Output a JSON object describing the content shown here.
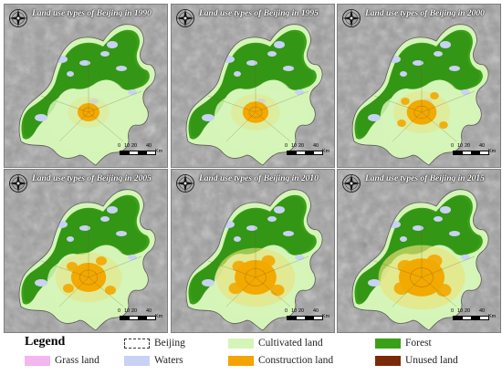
{
  "panels": [
    {
      "title": "Land use types of Beijing in 1990",
      "construction_growth": 0.0
    },
    {
      "title": "Land use types of Beijing in 1995",
      "construction_growth": 0.15
    },
    {
      "title": "Land use types of Beijing in 2000",
      "construction_growth": 0.3
    },
    {
      "title": "Land use types of Beijing in 2005",
      "construction_growth": 0.5
    },
    {
      "title": "Land use types of Beijing in 2010",
      "construction_growth": 0.75
    },
    {
      "title": "Land use types of Beijing in 2015",
      "construction_growth": 0.9
    }
  ],
  "scale": {
    "ticks": [
      "0",
      "10",
      "20",
      "40"
    ],
    "unit": "Km"
  },
  "legend": {
    "title": "Legend",
    "items": {
      "grass": {
        "label": "Grass land",
        "color": "#f3b6f0"
      },
      "beijing": {
        "label": "Beijing",
        "color": "#ffffff"
      },
      "cultivated": {
        "label": "Cultivated land",
        "color": "#d5f5b8"
      },
      "forest": {
        "label": "Forest",
        "color": "#3aa018"
      },
      "waters": {
        "label": "Waters",
        "color": "#c8d2f5"
      },
      "construction": {
        "label": "Construction land",
        "color": "#f5a300"
      },
      "unused": {
        "label": "Unused land",
        "color": "#7a2a08"
      }
    }
  },
  "colors": {
    "hillshade": "#9a9a9a",
    "construction_core": "#f2a900",
    "yellowish": "#e8e27a",
    "boundary": "#6b5a2a"
  }
}
